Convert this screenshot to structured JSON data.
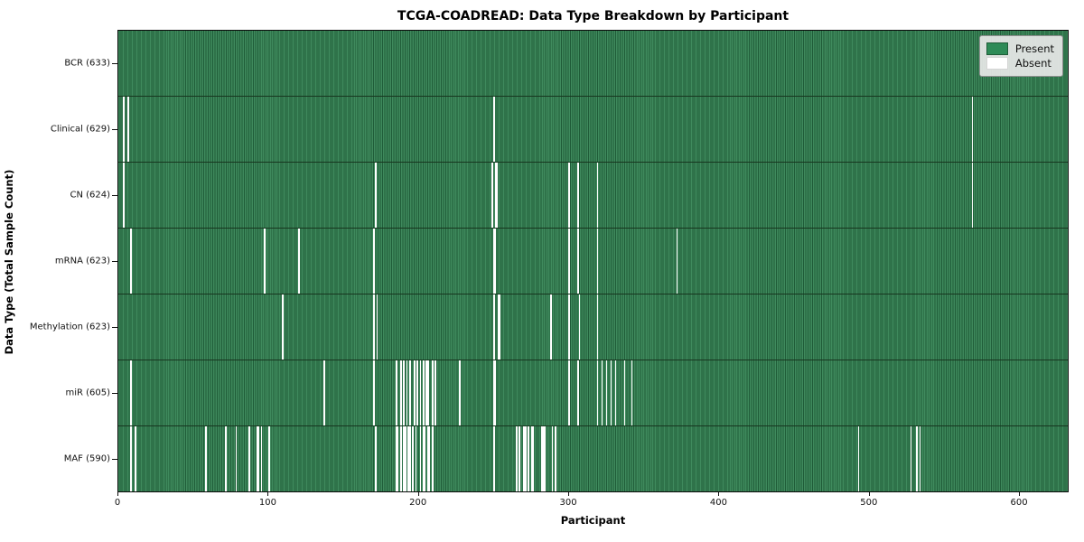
{
  "colors": {
    "present_face": "#3f8a5d",
    "present_edge": "#1f5c38",
    "present_legend": "#2e8b57",
    "absent": "#ffffff",
    "row_separator": "#17361f",
    "legend_bg": "#e8e8e8"
  },
  "legend": [
    {
      "name": "present",
      "label": "Present"
    },
    {
      "name": "absent",
      "label": "Absent"
    }
  ],
  "chart_data": {
    "type": "heatmap",
    "title": "TCGA-COADREAD: Data Type Breakdown by Participant",
    "xlabel": "Participant",
    "ylabel": "Data Type (Total Sample Count)",
    "legend_position": "upper right",
    "grid": false,
    "n_participants": 633,
    "xlim": [
      0,
      633
    ],
    "x_ticks": [
      0,
      100,
      200,
      300,
      400,
      500,
      600
    ],
    "value_legend": {
      "present": "Present",
      "absent": "Absent"
    },
    "rows": [
      {
        "name": "BCR",
        "total": 633,
        "label": "BCR (633)",
        "absent_participants": []
      },
      {
        "name": "Clinical",
        "total": 629,
        "label": "Clinical (629)",
        "absent_participants": [
          3,
          6,
          250,
          569
        ]
      },
      {
        "name": "CN",
        "total": 624,
        "label": "CN (624)",
        "absent_participants": [
          3,
          171,
          249,
          251,
          252,
          300,
          306,
          319,
          569
        ]
      },
      {
        "name": "mRNA",
        "total": 623,
        "label": "mRNA (623)",
        "absent_participants": [
          8,
          97,
          120,
          170,
          250,
          251,
          300,
          306,
          319,
          372
        ]
      },
      {
        "name": "Methylation",
        "total": 623,
        "label": "Methylation (623)",
        "absent_participants": [
          109,
          170,
          172,
          250,
          253,
          254,
          288,
          300,
          307,
          319
        ]
      },
      {
        "name": "miR",
        "total": 605,
        "label": "miR (605)",
        "absent_participants": [
          8,
          137,
          170,
          185,
          188,
          190,
          192,
          194,
          197,
          199,
          201,
          203,
          205,
          206,
          209,
          211,
          227,
          250,
          251,
          300,
          306,
          319,
          322,
          325,
          328,
          331,
          337,
          342
        ]
      },
      {
        "name": "MAF",
        "total": 590,
        "label": "MAF (590)",
        "absent_participants": [
          8,
          11,
          58,
          71,
          78,
          87,
          92,
          93,
          95,
          100,
          171,
          185,
          186,
          188,
          190,
          191,
          193,
          194,
          196,
          198,
          201,
          203,
          204,
          206,
          207,
          209,
          250,
          265,
          267,
          270,
          271,
          273,
          275,
          276,
          282,
          283,
          284,
          289,
          291,
          493,
          528,
          532,
          534
        ]
      }
    ]
  }
}
